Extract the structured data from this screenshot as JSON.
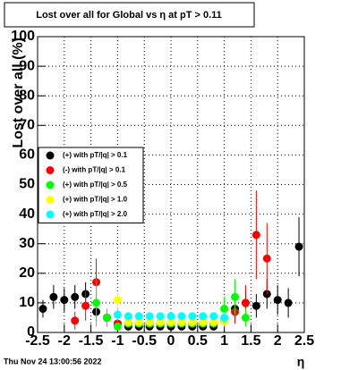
{
  "chart_data": {
    "type": "scatter",
    "title": "Lost over all for Global vs  η at pT > 0.11",
    "x_label": "η",
    "y_label": "Lost over all (%)",
    "timestamp": "Thu Nov 24 13:00:56 2022",
    "x": [
      -2.4,
      -2.2,
      -2.0,
      -1.8,
      -1.6,
      -1.4,
      -1.2,
      -1.0,
      -0.8,
      -0.6,
      -0.4,
      -0.2,
      0,
      0.2,
      0.4,
      0.6,
      0.8,
      1.0,
      1.2,
      1.4,
      1.6,
      1.8,
      2.0,
      2.2,
      2.4
    ],
    "series": [
      {
        "name": "(+) with pT/|q| > 0.1",
        "color": "#000000",
        "values": [
          8,
          12,
          11,
          12,
          13,
          7,
          5,
          3,
          2,
          2,
          2,
          2,
          2,
          2,
          2,
          2,
          2,
          4,
          8,
          10,
          9,
          13,
          11,
          10,
          29
        ],
        "errors": [
          3,
          4,
          4,
          4,
          4,
          3,
          2,
          1,
          1,
          1,
          1,
          1,
          1,
          1,
          1,
          1,
          1,
          2,
          3,
          4,
          4,
          5,
          5,
          5,
          10
        ]
      },
      {
        "name": "(-) with pT/|q| > 0.1",
        "color": "#ff0000",
        "values": [
          null,
          null,
          null,
          4,
          9,
          17,
          5,
          3,
          3,
          3,
          3,
          3,
          3,
          3,
          3,
          3,
          3,
          4,
          7,
          10,
          33,
          25,
          null,
          null,
          null
        ],
        "errors": [
          null,
          null,
          null,
          3,
          5,
          8,
          3,
          1,
          1,
          1,
          1,
          1,
          1,
          1,
          1,
          1,
          1,
          2,
          4,
          6,
          15,
          12,
          null,
          null,
          null
        ]
      },
      {
        "name": "(+) with pT/|q| > 0.5",
        "color": "#00ff00",
        "values": [
          null,
          null,
          null,
          null,
          null,
          10,
          5,
          2,
          3,
          3,
          3,
          3,
          3,
          3,
          3,
          3,
          3,
          8,
          12,
          5,
          null,
          null,
          null,
          null,
          null
        ],
        "errors": [
          null,
          null,
          null,
          null,
          null,
          8,
          3,
          1,
          1,
          1,
          1,
          1,
          1,
          1,
          1,
          1,
          1,
          4,
          6,
          3,
          null,
          null,
          null,
          null,
          null
        ]
      },
      {
        "name": "(+) with pT/|q| > 1.0",
        "color": "#ffff00",
        "values": [
          null,
          null,
          null,
          null,
          null,
          null,
          null,
          11,
          3.5,
          3.5,
          3.5,
          3.5,
          3.5,
          3.5,
          3.5,
          3.5,
          3.5,
          4,
          null,
          null,
          null,
          null,
          null,
          null,
          null
        ],
        "errors": [
          null,
          null,
          null,
          null,
          null,
          null,
          null,
          3,
          1,
          1,
          1,
          1,
          1,
          1,
          1,
          1,
          1,
          2,
          null,
          null,
          null,
          null,
          null,
          null,
          null
        ]
      },
      {
        "name": "(+) with pT/|q| > 2.0",
        "color": "#00ffff",
        "values": [
          null,
          null,
          null,
          null,
          null,
          null,
          null,
          6,
          5.5,
          5.5,
          5.5,
          5.5,
          5.5,
          5.5,
          5.5,
          5.5,
          5.5,
          5,
          null,
          null,
          null,
          null,
          null,
          null,
          null
        ],
        "errors": [
          null,
          null,
          null,
          null,
          null,
          null,
          null,
          2,
          1,
          1,
          1,
          1,
          1,
          1,
          1,
          1,
          1,
          2,
          null,
          null,
          null,
          null,
          null,
          null,
          null
        ]
      }
    ],
    "xlim": [
      -2.5,
      2.5
    ],
    "ylim": [
      0,
      100
    ],
    "xticks": [
      -2.5,
      -2,
      -1.5,
      -1,
      -0.5,
      0,
      0.5,
      1,
      1.5,
      2,
      2.5
    ],
    "yticks": [
      0,
      10,
      20,
      30,
      40,
      50,
      60,
      70,
      80,
      90,
      100
    ],
    "grid": true,
    "legend": "left"
  }
}
